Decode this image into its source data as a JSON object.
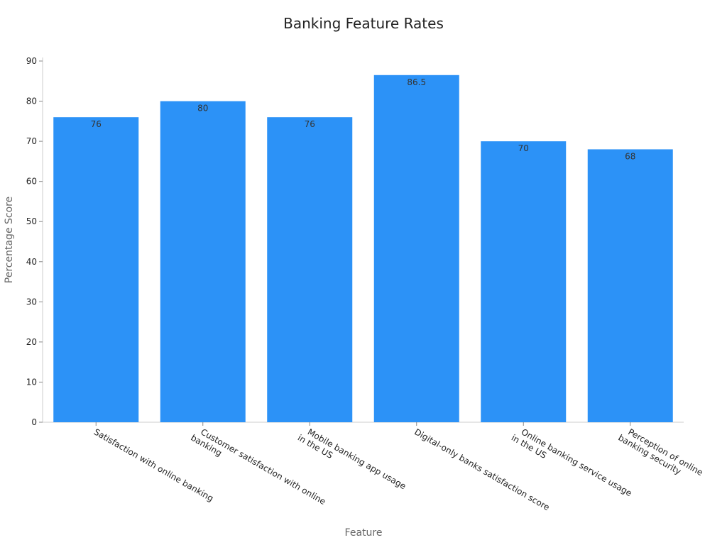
{
  "chart_data": {
    "type": "bar",
    "title": "Banking Feature Rates",
    "x_label": "Feature",
    "y_label": "Percentage Score",
    "categories": [
      "Satisfaction with online banking",
      "Customer satisfaction with online\nbanking",
      "Mobile banking app usage\nin the US",
      "Digital-only banks satisfaction score",
      "Online banking service usage\nin the US",
      "Perception of online\nbanking security"
    ],
    "values": [
      76,
      80,
      76,
      86.5,
      70,
      68
    ],
    "color": "#2c92f7",
    "ylim": [
      0,
      90
    ],
    "yticks": [
      0,
      10,
      20,
      30,
      40,
      50,
      60,
      70,
      80,
      90
    ],
    "grid": false
  }
}
